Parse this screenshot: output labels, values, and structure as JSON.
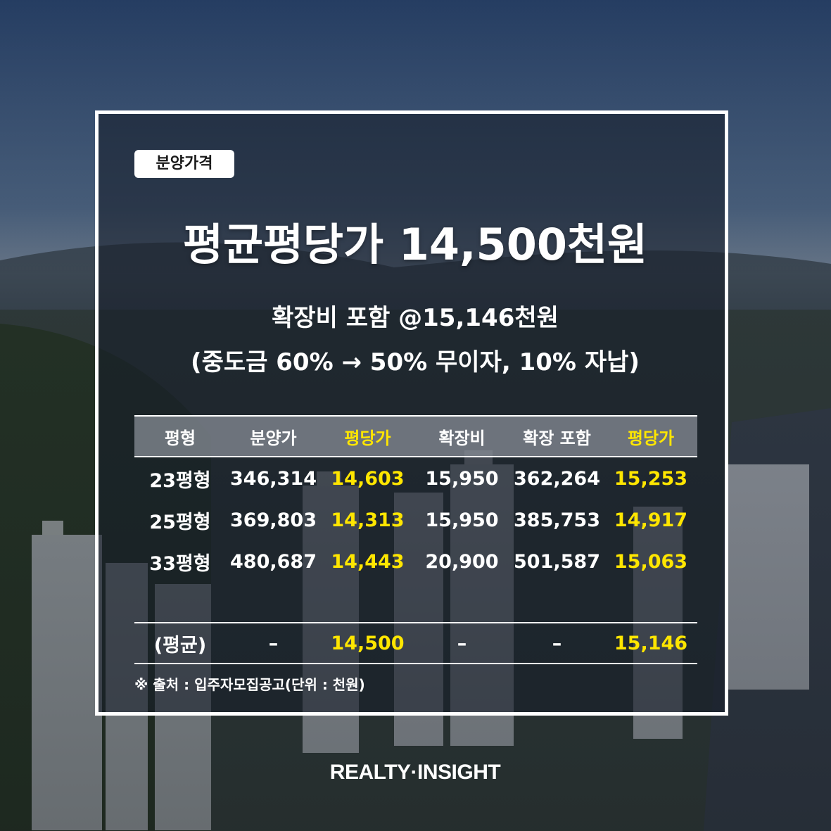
{
  "tag": "분양가격",
  "title": "평균평당가 14,500천원",
  "subtitle_1": "확장비 포함 @15,146천원",
  "subtitle_2": "(중도금 60% → 50% 무이자, 10% 자납)",
  "table": {
    "headers": [
      "평형",
      "분양가",
      "평당가",
      "확장비",
      "확장 포함",
      "평당가"
    ],
    "rows": [
      [
        "23평형",
        "346,314",
        "14,603",
        "15,950",
        "362,264",
        "15,253"
      ],
      [
        "25평형",
        "369,803",
        "14,313",
        "15,950",
        "385,753",
        "14,917"
      ],
      [
        "33평형",
        "480,687",
        "14,443",
        "20,900",
        "501,587",
        "15,063"
      ]
    ],
    "average": [
      "(평균)",
      "–",
      "14,500",
      "–",
      "–",
      "15,146"
    ]
  },
  "source": "※ 출처 : 입주자모집공고(단위 : 천원)",
  "brand": "REALTY·INSIGHT",
  "colors": {
    "highlight": "#ffe600",
    "text": "#ffffff",
    "frame": "#ffffff"
  }
}
